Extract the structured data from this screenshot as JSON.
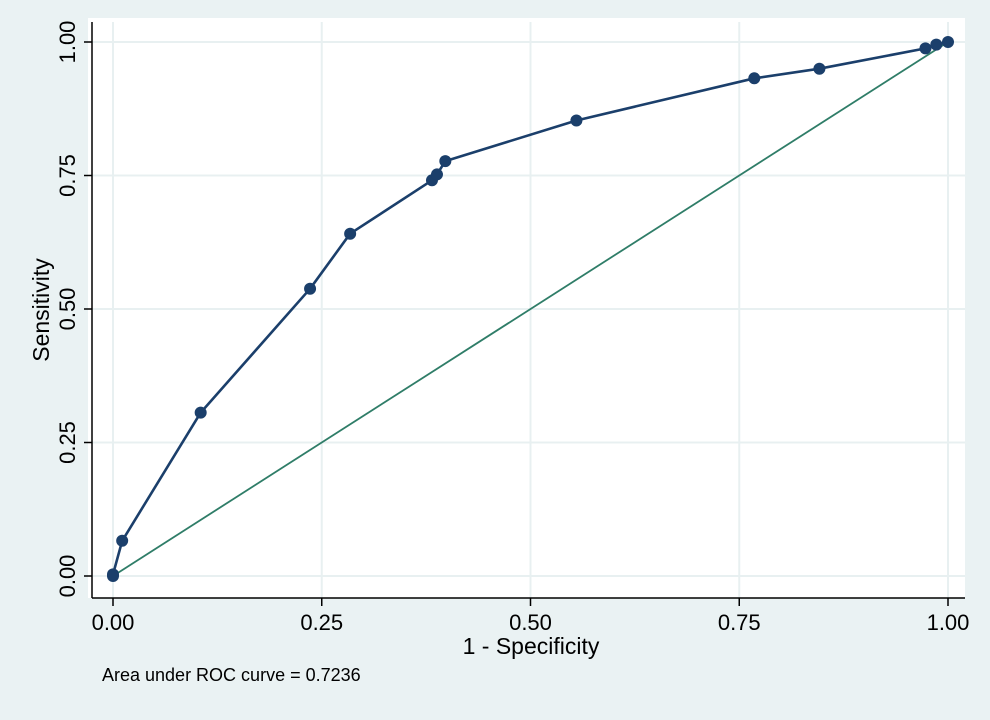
{
  "chart_data": {
    "type": "line",
    "xlabel": "1 - Specificity",
    "ylabel": "Sensitivity",
    "xlim": [
      0,
      1
    ],
    "ylim": [
      0,
      1
    ],
    "x_ticks": [
      "0.00",
      "0.25",
      "0.50",
      "0.75",
      "1.00"
    ],
    "y_ticks": [
      "0.00",
      "0.25",
      "0.50",
      "0.75",
      "1.00"
    ],
    "grid": true,
    "legend": "none",
    "series": [
      {
        "x": [
          0.0,
          0.0,
          0.011,
          0.105,
          0.236,
          0.284,
          0.382,
          0.388,
          0.398,
          0.555,
          0.768,
          0.846,
          0.973,
          0.986,
          1.0
        ],
        "y": [
          0.0,
          0.003,
          0.066,
          0.306,
          0.538,
          0.641,
          0.741,
          0.752,
          0.777,
          0.853,
          0.932,
          0.95,
          0.988,
          0.995,
          1.0
        ],
        "color": "#1b3f6b",
        "markers": true
      },
      {
        "x": [
          0,
          1
        ],
        "y": [
          0,
          1
        ],
        "color": "#2f7d68",
        "markers": false
      }
    ],
    "annotation": "Area under ROC curve = 0.7236"
  },
  "colors": {
    "background": "#eaf2f3",
    "plot_background": "#ffffff",
    "grid": "#e8f0f1",
    "roc_line": "#1b3f6b",
    "reference_line": "#2f7d68"
  }
}
